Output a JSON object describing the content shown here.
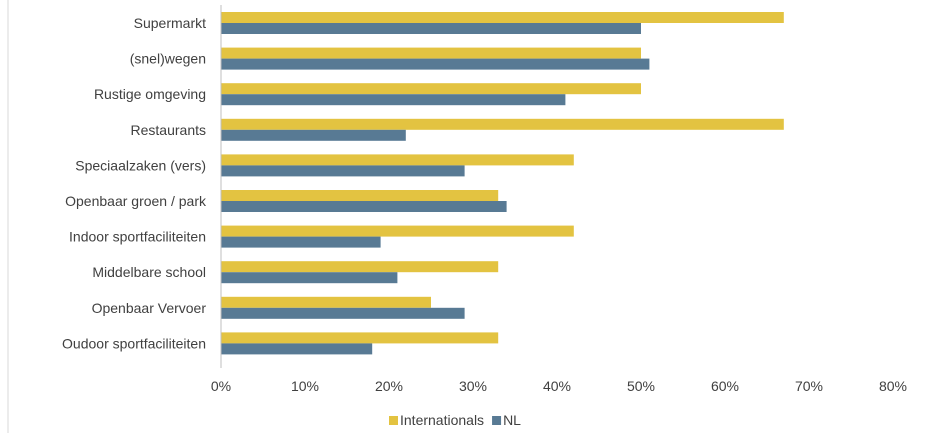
{
  "chart_data": {
    "type": "bar",
    "orientation": "horizontal",
    "categories": [
      "Supermarkt",
      "(snel)wegen",
      "Rustige omgeving",
      "Restaurants",
      "Speciaalzaken (vers)",
      "Openbaar groen / park",
      "Indoor sportfaciliteiten",
      "Middelbare school",
      "Openbaar Vervoer",
      "Oudoor sportfaciliteiten"
    ],
    "series": [
      {
        "name": "Internationals",
        "color": "#E3C341",
        "values": [
          0.67,
          0.5,
          0.5,
          0.67,
          0.42,
          0.33,
          0.42,
          0.33,
          0.25,
          0.33
        ]
      },
      {
        "name": "NL",
        "color": "#587A94",
        "values": [
          0.5,
          0.51,
          0.41,
          0.22,
          0.29,
          0.34,
          0.19,
          0.21,
          0.29,
          0.18
        ]
      }
    ],
    "xlim": [
      0,
      0.8
    ],
    "xticks": [
      0,
      0.1,
      0.2,
      0.3,
      0.4,
      0.5,
      0.6,
      0.7,
      0.8
    ],
    "xtick_labels": [
      "0%",
      "10%",
      "20%",
      "30%",
      "40%",
      "50%",
      "60%",
      "70%",
      "80%"
    ],
    "grid": false,
    "legend_position": "bottom"
  }
}
